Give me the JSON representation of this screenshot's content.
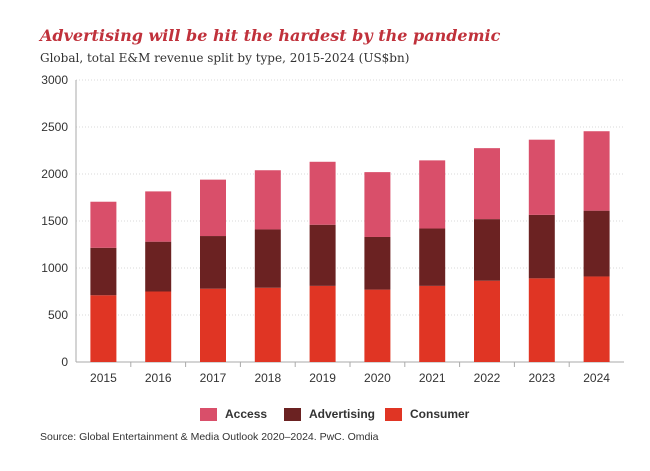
{
  "header": {
    "title": "Advertising will be hit the hardest by the pandemic",
    "subtitle": "Global, total E&M revenue split by type, 2015-2024 (US$bn)"
  },
  "colors": {
    "access": "#d94f6a",
    "advertising": "#6b2222",
    "consumer": "#e03524",
    "grid": "#d9d9d9",
    "axis": "#aaaaaa",
    "title": "#c0313b"
  },
  "legend": {
    "access": "Access",
    "advertising": "Advertising",
    "consumer": "Consumer"
  },
  "footer": {
    "source": "Source: Global Entertainment & Media Outlook 2020–2024. PwC. Omdia"
  },
  "chart_data": {
    "type": "bar",
    "stacked": true,
    "categories": [
      "2015",
      "2016",
      "2017",
      "2018",
      "2019",
      "2020",
      "2021",
      "2022",
      "2023",
      "2024"
    ],
    "series": [
      {
        "name": "Consumer",
        "values": [
          710,
          750,
          780,
          790,
          810,
          770,
          810,
          865,
          890,
          910
        ]
      },
      {
        "name": "Advertising",
        "values": [
          505,
          530,
          560,
          620,
          650,
          560,
          610,
          655,
          675,
          700
        ]
      },
      {
        "name": "Access",
        "values": [
          490,
          535,
          600,
          630,
          670,
          690,
          725,
          755,
          800,
          845
        ]
      }
    ],
    "y_ticks": [
      0,
      500,
      1000,
      1500,
      2000,
      2500,
      3000
    ],
    "ylim": [
      0,
      3000
    ],
    "grid": true,
    "legend_position": "bottom"
  }
}
